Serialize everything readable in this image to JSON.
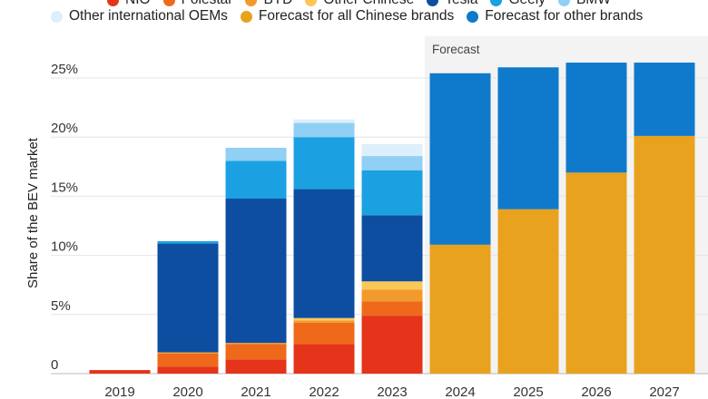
{
  "chart_data": {
    "type": "bar",
    "stacked": true,
    "ylabel": "Share of the BEV market",
    "ylim": [
      0,
      26
    ],
    "yticks": [
      0,
      5,
      10,
      15,
      20,
      25
    ],
    "ytick_labels": [
      "0",
      "5%",
      "10%",
      "15%",
      "20%",
      "25%"
    ],
    "forecast_label": "Forecast",
    "forecast_start": "2024",
    "categories": [
      "2019",
      "2020",
      "2021",
      "2022",
      "2023",
      "2024",
      "2025",
      "2026",
      "2027"
    ],
    "legend_row1": [
      "NIO",
      "Polestar",
      "BYD",
      "Other Chinese",
      "Tesla",
      "Geely",
      "BMW"
    ],
    "legend_row2": [
      "Other international OEMs",
      "Forecast for all Chinese brands",
      "Forecast for other brands"
    ],
    "series": [
      {
        "name": "NIO",
        "color": "#e5341a",
        "values": [
          0.3,
          0.6,
          1.2,
          2.5,
          4.9,
          0,
          0,
          0,
          0
        ]
      },
      {
        "name": "Polestar",
        "color": "#ee6a1a",
        "values": [
          0,
          1.1,
          1.3,
          1.8,
          1.2,
          0,
          0,
          0,
          0
        ]
      },
      {
        "name": "BYD",
        "color": "#f39a2c",
        "values": [
          0,
          0.1,
          0.1,
          0.2,
          1.0,
          0,
          0,
          0,
          0
        ]
      },
      {
        "name": "Other Chinese",
        "color": "#fbc757",
        "values": [
          0,
          0,
          0,
          0.2,
          0.7,
          0,
          0,
          0,
          0
        ]
      },
      {
        "name": "Tesla",
        "color": "#0d4ea1",
        "values": [
          0,
          9.2,
          12.2,
          10.9,
          5.6,
          0,
          0,
          0,
          0
        ]
      },
      {
        "name": "Geely",
        "color": "#1ba1e2",
        "values": [
          0,
          0.2,
          3.2,
          4.4,
          3.8,
          0,
          0,
          0,
          0
        ]
      },
      {
        "name": "BMW",
        "color": "#8fd0f4",
        "values": [
          0,
          0,
          1.1,
          1.2,
          1.2,
          0,
          0,
          0,
          0
        ]
      },
      {
        "name": "Other international OEMs",
        "color": "#ddeffa",
        "values": [
          0,
          0,
          0,
          0.3,
          1.0,
          0,
          0,
          0,
          0
        ]
      },
      {
        "name": "Forecast for all Chinese brands",
        "color": "#e8a21d",
        "values": [
          0,
          0,
          0,
          0,
          0,
          10.9,
          13.9,
          17.0,
          20.1
        ]
      },
      {
        "name": "Forecast for other brands",
        "color": "#0f7acb",
        "values": [
          0,
          0,
          0,
          0,
          0,
          14.5,
          12.0,
          9.3,
          6.2
        ]
      }
    ]
  }
}
